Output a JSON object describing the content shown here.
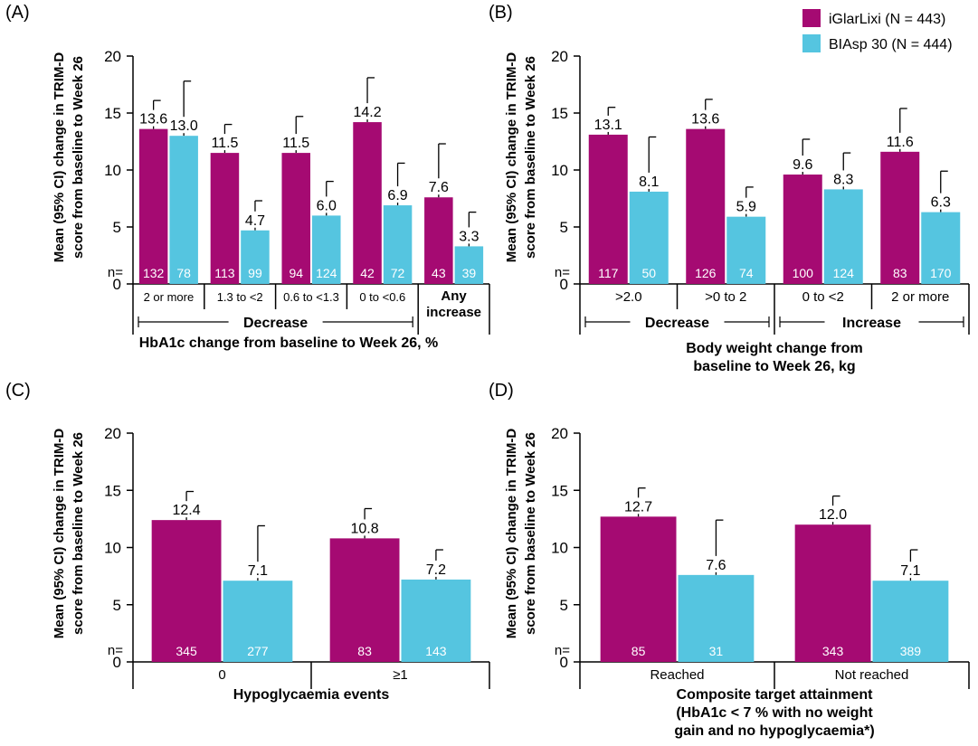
{
  "legend": {
    "placement": "top-right",
    "items": [
      {
        "label": "iGlarLixi (N = 443)",
        "color": "#A50A72"
      },
      {
        "label": "BIAsp 30 (N = 444)",
        "color": "#55C5E0"
      }
    ]
  },
  "chart_data": [
    {
      "type": "bar",
      "panel_label": "(A)",
      "ylabel": [
        "Mean (95% CI) change in TRIM-D",
        "score from baseline to Week 26"
      ],
      "ylim": [
        0,
        20
      ],
      "yticks": [
        0,
        5,
        10,
        15,
        20
      ],
      "n_label": "n=",
      "categories": [
        "2 or more",
        "1.3 to <2",
        "0.6 to <1.3",
        "0 to <0.6",
        "Any increase"
      ],
      "category_lines": [
        [
          "2 or more"
        ],
        [
          "1.3 to <2"
        ],
        [
          "0.6 to <1.3"
        ],
        [
          "0 to <0.6"
        ],
        [
          "Any",
          "increase"
        ]
      ],
      "category_bold": [
        false,
        false,
        false,
        false,
        true
      ],
      "groups": [
        {
          "label": "Decrease",
          "from": 0,
          "to": 3
        }
      ],
      "xlabel": [
        "HbA1c change from baseline to Week 26, %"
      ],
      "series": [
        {
          "name": "iGlarLixi (N = 443)",
          "values": [
            13.6,
            11.5,
            11.5,
            14.2,
            7.6
          ],
          "upper_ci": [
            16.1,
            14.0,
            14.7,
            18.1,
            12.3
          ],
          "n": [
            132,
            113,
            94,
            42,
            43
          ]
        },
        {
          "name": "BIAsp 30 (N = 444)",
          "values": [
            13.0,
            4.7,
            6.0,
            6.9,
            3.3
          ],
          "upper_ci": [
            17.8,
            7.3,
            9.0,
            10.6,
            6.3
          ],
          "n": [
            78,
            99,
            124,
            72,
            39
          ]
        }
      ],
      "value_labels": [
        [
          "13.6",
          "11.5",
          "11.5",
          "14.2",
          "7.6"
        ],
        [
          "13.0",
          "4.7",
          "6.0",
          "6.9",
          "3.3"
        ]
      ]
    },
    {
      "type": "bar",
      "panel_label": "(B)",
      "ylabel": [
        "Mean (95% CI) change in TRIM-D",
        "score from baseline to Week 26"
      ],
      "ylim": [
        0,
        20
      ],
      "yticks": [
        0,
        5,
        10,
        15,
        20
      ],
      "n_label": "n=",
      "categories": [
        ">2.0",
        ">0 to 2",
        "0 to <2",
        "2 or more"
      ],
      "category_lines": [
        [
          ">2.0"
        ],
        [
          ">0 to 2"
        ],
        [
          "0 to <2"
        ],
        [
          "2 or more"
        ]
      ],
      "category_bold": [
        false,
        false,
        false,
        false
      ],
      "groups": [
        {
          "label": "Decrease",
          "from": 0,
          "to": 1
        },
        {
          "label": "Increase",
          "from": 2,
          "to": 3
        }
      ],
      "xlabel": [
        "Body weight change from",
        "baseline to Week 26, kg"
      ],
      "series": [
        {
          "name": "iGlarLixi (N = 443)",
          "values": [
            13.1,
            13.6,
            9.6,
            11.6
          ],
          "upper_ci": [
            15.5,
            16.2,
            12.7,
            15.4
          ],
          "n": [
            117,
            126,
            100,
            83
          ]
        },
        {
          "name": "BIAsp 30 (N = 444)",
          "values": [
            8.1,
            5.9,
            8.3,
            6.3
          ],
          "upper_ci": [
            12.9,
            8.5,
            11.5,
            9.9
          ],
          "n": [
            50,
            74,
            124,
            170
          ]
        }
      ],
      "value_labels": [
        [
          "13.1",
          "13.6",
          "9.6",
          "11.6"
        ],
        [
          "8.1",
          "5.9",
          "8.3",
          "6.3"
        ]
      ]
    },
    {
      "type": "bar",
      "panel_label": "(C)",
      "ylabel": [
        "Mean (95% CI) change in TRIM-D",
        "score from baseline to Week 26"
      ],
      "ylim": [
        0,
        20
      ],
      "yticks": [
        0,
        5,
        10,
        15,
        20
      ],
      "n_label": "n=",
      "categories": [
        "0",
        "≥1"
      ],
      "category_lines": [
        [
          "0"
        ],
        [
          "≥1"
        ]
      ],
      "category_bold": [
        false,
        false
      ],
      "groups": [],
      "xlabel": [
        "Hypoglycaemia events"
      ],
      "series": [
        {
          "name": "iGlarLixi (N = 443)",
          "values": [
            12.4,
            10.8
          ],
          "upper_ci": [
            14.9,
            13.4
          ],
          "n": [
            345,
            83
          ]
        },
        {
          "name": "BIAsp 30 (N = 444)",
          "values": [
            7.1,
            7.2
          ],
          "upper_ci": [
            11.9,
            9.8
          ],
          "n": [
            277,
            143
          ]
        }
      ],
      "value_labels": [
        [
          "12.4",
          "10.8"
        ],
        [
          "7.1",
          "7.2"
        ]
      ]
    },
    {
      "type": "bar",
      "panel_label": "(D)",
      "ylabel": [
        "Mean (95% CI) change in TRIM-D",
        "score from baseline to Week 26"
      ],
      "ylim": [
        0,
        20
      ],
      "yticks": [
        0,
        5,
        10,
        15,
        20
      ],
      "n_label": "n=",
      "categories": [
        "Reached",
        "Not reached"
      ],
      "category_lines": [
        [
          "Reached"
        ],
        [
          "Not reached"
        ]
      ],
      "category_bold": [
        false,
        false
      ],
      "groups": [],
      "xlabel": [
        "Composite target attainment",
        "(HbA1c < 7 % with no weight",
        "gain and no hypoglycaemia*)"
      ],
      "series": [
        {
          "name": "iGlarLixi (N = 443)",
          "values": [
            12.7,
            12.0
          ],
          "upper_ci": [
            15.2,
            14.5
          ],
          "n": [
            85,
            343
          ]
        },
        {
          "name": "BIAsp 30 (N = 444)",
          "values": [
            7.6,
            7.1
          ],
          "upper_ci": [
            12.4,
            9.8
          ],
          "n": [
            31,
            389
          ]
        }
      ],
      "value_labels": [
        [
          "12.7",
          "12.0"
        ],
        [
          "7.6",
          "7.1"
        ]
      ]
    }
  ]
}
